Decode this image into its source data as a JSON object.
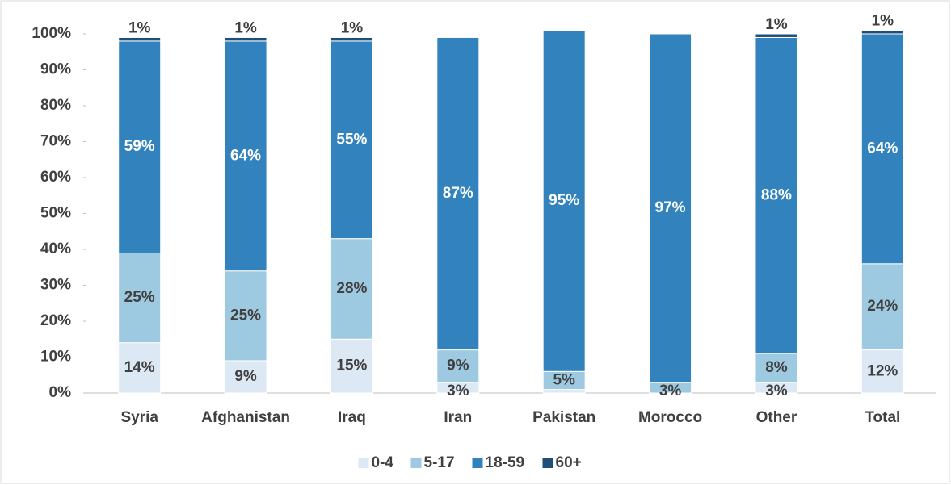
{
  "chart_data": {
    "type": "stacked_bar",
    "categories": [
      "Syria",
      "Afghanistan",
      "Iraq",
      "Iran",
      "Pakistan",
      "Morocco",
      "Other",
      "Total"
    ],
    "series": [
      {
        "name": "0-4",
        "color": "#dde8f5",
        "values": [
          14,
          9,
          15,
          3,
          1,
          0,
          3,
          12
        ],
        "value_labels": [
          "14%",
          "9%",
          "15%",
          "3%",
          null,
          null,
          "3%",
          "12%"
        ]
      },
      {
        "name": "5-17",
        "color": "#9ecae1",
        "values": [
          25,
          25,
          28,
          9,
          5,
          3,
          8,
          24
        ],
        "value_labels": [
          "25%",
          "25%",
          "28%",
          "9%",
          "5%",
          "3%",
          "8%",
          "24%"
        ]
      },
      {
        "name": "18-59",
        "color": "#3182bd",
        "values": [
          59,
          64,
          55,
          87,
          95,
          97,
          88,
          64
        ],
        "value_labels": [
          "59%",
          "64%",
          "55%",
          "87%",
          "95%",
          "97%",
          "88%",
          "64%"
        ]
      },
      {
        "name": "60+",
        "color": "#1f4e79",
        "values": [
          1,
          1,
          1,
          0,
          0,
          0,
          1,
          1
        ],
        "value_labels": [
          "1%",
          "1%",
          "1%",
          null,
          null,
          null,
          "1%",
          "1%"
        ]
      }
    ],
    "ylim": [
      0,
      100
    ],
    "yticks": [
      {
        "value": 0,
        "label": "0%"
      },
      {
        "value": 10,
        "label": "10%"
      },
      {
        "value": 20,
        "label": "20%"
      },
      {
        "value": 30,
        "label": "30%"
      },
      {
        "value": 40,
        "label": "40%"
      },
      {
        "value": 50,
        "label": "50%"
      },
      {
        "value": 60,
        "label": "60%"
      },
      {
        "value": 70,
        "label": "70%"
      },
      {
        "value": 80,
        "label": "80%"
      },
      {
        "value": 90,
        "label": "90%"
      },
      {
        "value": 100,
        "label": "100%"
      }
    ],
    "legend": "bottom"
  }
}
